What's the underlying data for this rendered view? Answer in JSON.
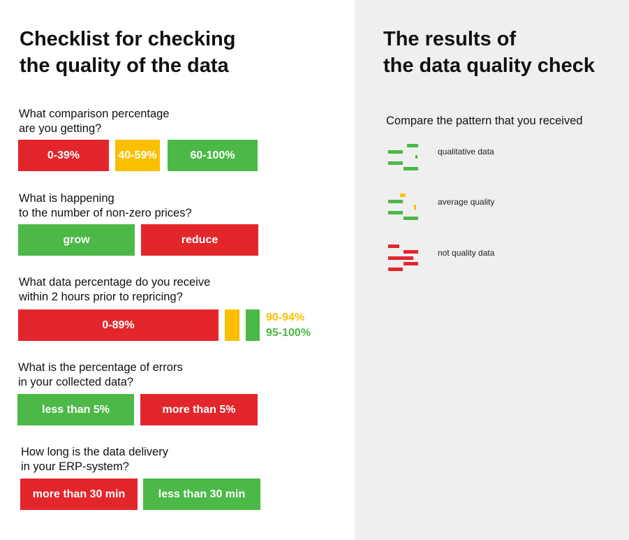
{
  "left_title": [
    "Checklist for checking",
    "the quality of the data"
  ],
  "right_title": [
    "The results of",
    "the data quality check"
  ],
  "colors": {
    "red": "#e3262b",
    "green": "#4cb847",
    "yellow": "#fbbf00",
    "panel": "#efefef"
  },
  "questions": [
    {
      "lines": [
        "What comparison percentage",
        "are you getting?"
      ],
      "options": [
        "0-39%",
        "40-59%",
        "60-100%"
      ]
    },
    {
      "lines": [
        "What is happening",
        "to the number of non-zero prices?"
      ],
      "options": [
        "grow",
        "reduce"
      ]
    },
    {
      "lines": [
        "What data percentage do you receive",
        "within 2 hours prior to repricing?"
      ],
      "options": [
        "0-89%"
      ],
      "side_labels": [
        "90-94%",
        "95-100%"
      ]
    },
    {
      "lines": [
        "What is the percentage of errors",
        "in your collected data?"
      ],
      "options": [
        "less than 5%",
        "more than 5%"
      ]
    },
    {
      "lines": [
        "How long is the data delivery",
        "in your ERP-system?"
      ],
      "options": [
        "more than 30 min",
        "less than 30 min"
      ]
    }
  ],
  "results": {
    "compare_text": "Compare the pattern that you received",
    "legend": [
      {
        "label": "qualitative data",
        "pattern": "green"
      },
      {
        "label": "average quality",
        "pattern": "mixed"
      },
      {
        "label": "not quality data",
        "pattern": "red"
      }
    ]
  }
}
